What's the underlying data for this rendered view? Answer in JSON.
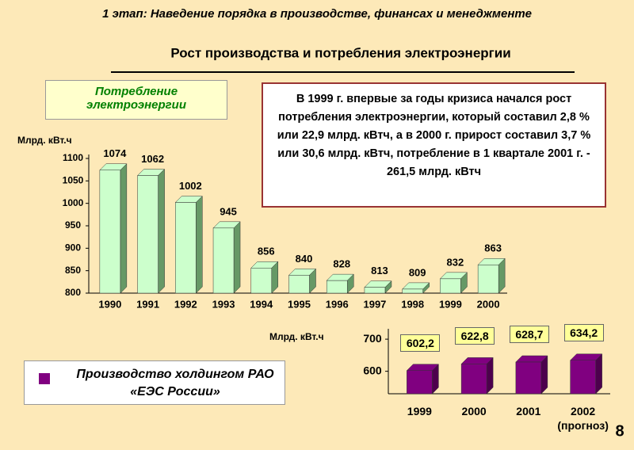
{
  "header": "1 этап: Наведение порядка в производстве, финансах и менеджменте",
  "slide_title": "Рост производства и потребления электроэнергии",
  "note": "В 1999 г.  впервые за годы кризиса начался рост потребления электроэнергии, который составил 2,8 % или 22,9 млрд. кВтч, а в 2000 г. прирост составил 3,7 % или 30,6 млрд. кВтч, потребление в 1 квартале 2001 г.  -  261,5 млрд. кВтч",
  "page_number": "8",
  "chart_data": [
    {
      "type": "bar3d",
      "title": "Потребление электроэнергии",
      "y_label": "Млрд. кВт.ч",
      "categories": [
        "1990",
        "1991",
        "1992",
        "1993",
        "1994",
        "1995",
        "1996",
        "1997",
        "1998",
        "1999",
        "2000"
      ],
      "values": [
        1074,
        1062,
        1002,
        945,
        856,
        840,
        828,
        813,
        809,
        832,
        863
      ],
      "color": "#ccffcc",
      "side_color": "#669966",
      "ylim": [
        800,
        1100
      ],
      "yticks": [
        800,
        850,
        900,
        950,
        1000,
        1050,
        1100
      ]
    },
    {
      "type": "bar3d",
      "y_label": "Млрд. кВт.ч",
      "categories": [
        "1999",
        "2000",
        "2001",
        "2002 (прогноз)"
      ],
      "series": [
        {
          "name": "Производство холдингом РАО «ЕЭС России»",
          "color": "#800080",
          "values": [
            602.2,
            622.8,
            628.7,
            634.2
          ],
          "value_labels": [
            "602,2",
            "622,8",
            "628,7",
            "634,2"
          ]
        }
      ],
      "side_color": "#4d004d",
      "ylim": [
        530,
        720
      ],
      "yticks": [
        600,
        700
      ]
    }
  ]
}
